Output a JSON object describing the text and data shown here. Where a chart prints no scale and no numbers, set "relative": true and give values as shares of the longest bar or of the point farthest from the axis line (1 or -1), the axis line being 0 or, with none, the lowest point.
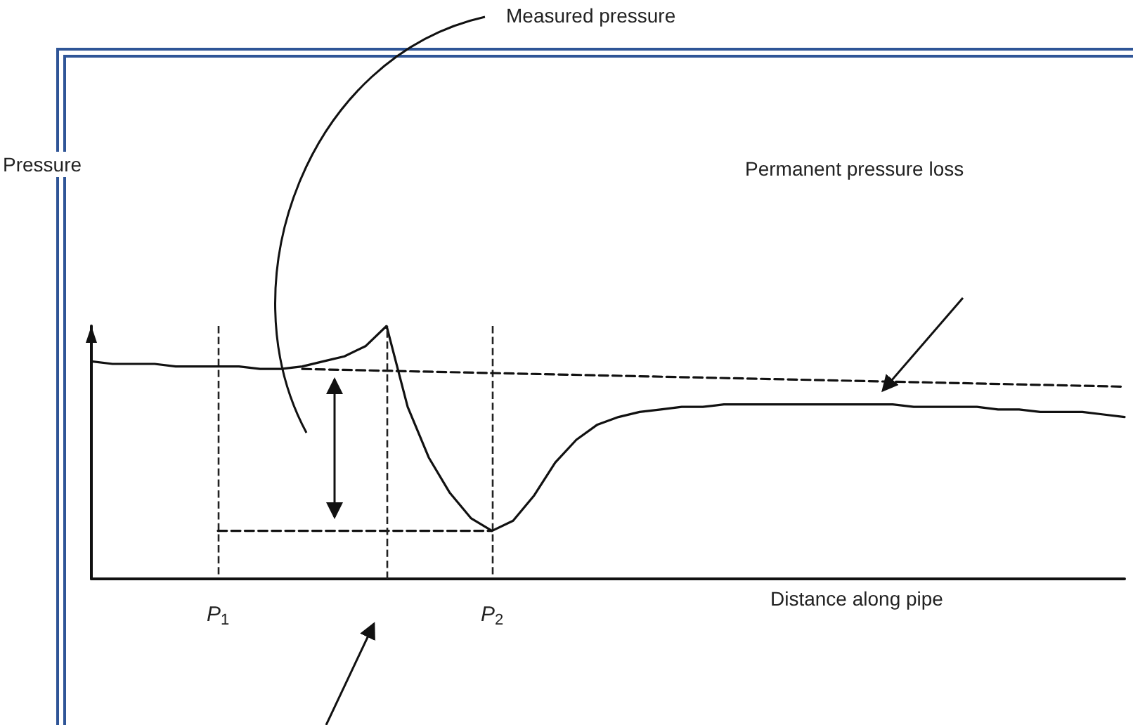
{
  "chart_data": {
    "type": "line",
    "relative": true,
    "xlabel": "Distance along pipe",
    "categories": [
      null,
      null,
      null,
      null,
      null,
      null,
      "P$_{1}$",
      null,
      null,
      null,
      null,
      null,
      null,
      null,
      null,
      null,
      null,
      null,
      null,
      "P$_{2}$",
      null,
      null,
      null,
      null,
      null,
      null,
      null,
      null,
      null,
      null,
      null,
      null,
      null,
      null,
      null,
      null,
      null,
      null,
      null,
      null,
      null,
      null,
      null,
      null,
      null,
      null,
      null,
      null,
      null,
      null
    ],
    "series": [
      {
        "color": "#111111",
        "line_style": "solid",
        "values": [
          0.86,
          0.85,
          0.85,
          0.85,
          0.84,
          0.84,
          0.84,
          0.84,
          0.83,
          0.83,
          0.84,
          0.86,
          0.88,
          0.92,
          1,
          0.68,
          0.48,
          0.34,
          0.24,
          0.19,
          0.23,
          0.33,
          0.46,
          0.55,
          0.61,
          0.64,
          0.66,
          0.67,
          0.68,
          0.68,
          0.69,
          0.69,
          0.69,
          0.69,
          0.69,
          0.69,
          0.69,
          0.69,
          0.69,
          0.68,
          0.68,
          0.68,
          0.68,
          0.67,
          0.67,
          0.66,
          0.66,
          0.66,
          0.65,
          0.64
        ]
      },
      {
        "color": "#111111",
        "line_style": "dashed",
        "values": [
          null,
          null,
          null,
          null,
          null,
          null,
          null,
          null,
          null,
          null,
          0.83,
          null,
          null,
          null,
          null,
          null,
          null,
          null,
          null,
          null,
          null,
          null,
          null,
          null,
          null,
          null,
          null,
          null,
          null,
          null,
          null,
          null,
          null,
          null,
          null,
          null,
          null,
          null,
          null,
          null,
          null,
          null,
          null,
          null,
          null,
          null,
          null,
          null,
          null,
          0.76
        ]
      },
      {
        "color": "#111111",
        "line_style": "dashed",
        "values": [
          null,
          null,
          null,
          null,
          null,
          null,
          0.19,
          null,
          null,
          null,
          null,
          null,
          null,
          null,
          null,
          null,
          null,
          null,
          null,
          0.19,
          null,
          null,
          null,
          null,
          null,
          null,
          null,
          null,
          null,
          null,
          null,
          null,
          null,
          null,
          null,
          null,
          null,
          null,
          null,
          null,
          null,
          null,
          null,
          null,
          null,
          null,
          null,
          null,
          null,
          null
        ]
      }
    ],
    "grid": "x",
    "annotations": [
      "Measured pressure",
      "Permanent pressure loss",
      "Pressure"
    ],
    "tick_labels": "x",
    "marker": "none"
  }
}
